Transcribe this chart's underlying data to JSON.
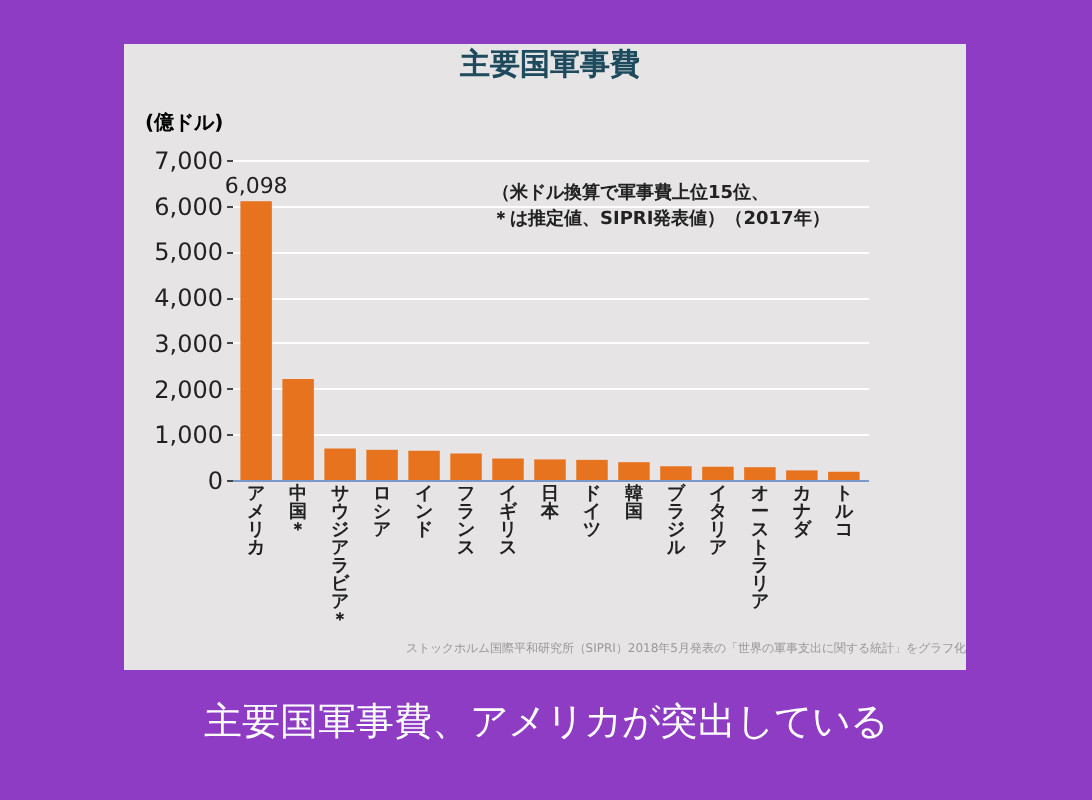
{
  "chart_data": {
    "type": "bar",
    "title": "主要国軍事費",
    "ylabel": "(億ドル)",
    "categories": [
      "アメリカ",
      "中国＊",
      "サウジアラビア＊",
      "ロシア",
      "インド",
      "フランス",
      "イギリス",
      "日本",
      "ドイツ",
      "韓国",
      "ブラジル",
      "イタリア",
      "オーストラリア",
      "カナダ",
      "トルコ"
    ],
    "values": [
      6098,
      2210,
      690,
      660,
      640,
      580,
      470,
      450,
      440,
      390,
      300,
      290,
      280,
      210,
      180
    ],
    "value_labels": [
      "6,098",
      null,
      null,
      null,
      null,
      null,
      null,
      null,
      null,
      null,
      null,
      null,
      null,
      null,
      null
    ],
    "color": "#e8731e",
    "ylim": [
      0,
      7000
    ],
    "yticks": [
      {
        "value": 0,
        "label": "0"
      },
      {
        "value": 1000,
        "label": "1,000"
      },
      {
        "value": 2000,
        "label": "2,000"
      },
      {
        "value": 3000,
        "label": "3,000"
      },
      {
        "value": 4000,
        "label": "4,000"
      },
      {
        "value": 5000,
        "label": "5,000"
      },
      {
        "value": 6000,
        "label": "6,000"
      },
      {
        "value": 7000,
        "label": "7,000"
      }
    ],
    "grid": "y",
    "annotations": [
      "（米ドル換算で軍事費上位15位、",
      "＊は推定値、SIPRI発表値）（2017年）",
      "ストックホルム国際平和研究所（SIPRI）2018年5月発表の「世界の軍事支出に関する統計」をグラフ化",
      "主要国軍事費、アメリカが突出している"
    ]
  }
}
